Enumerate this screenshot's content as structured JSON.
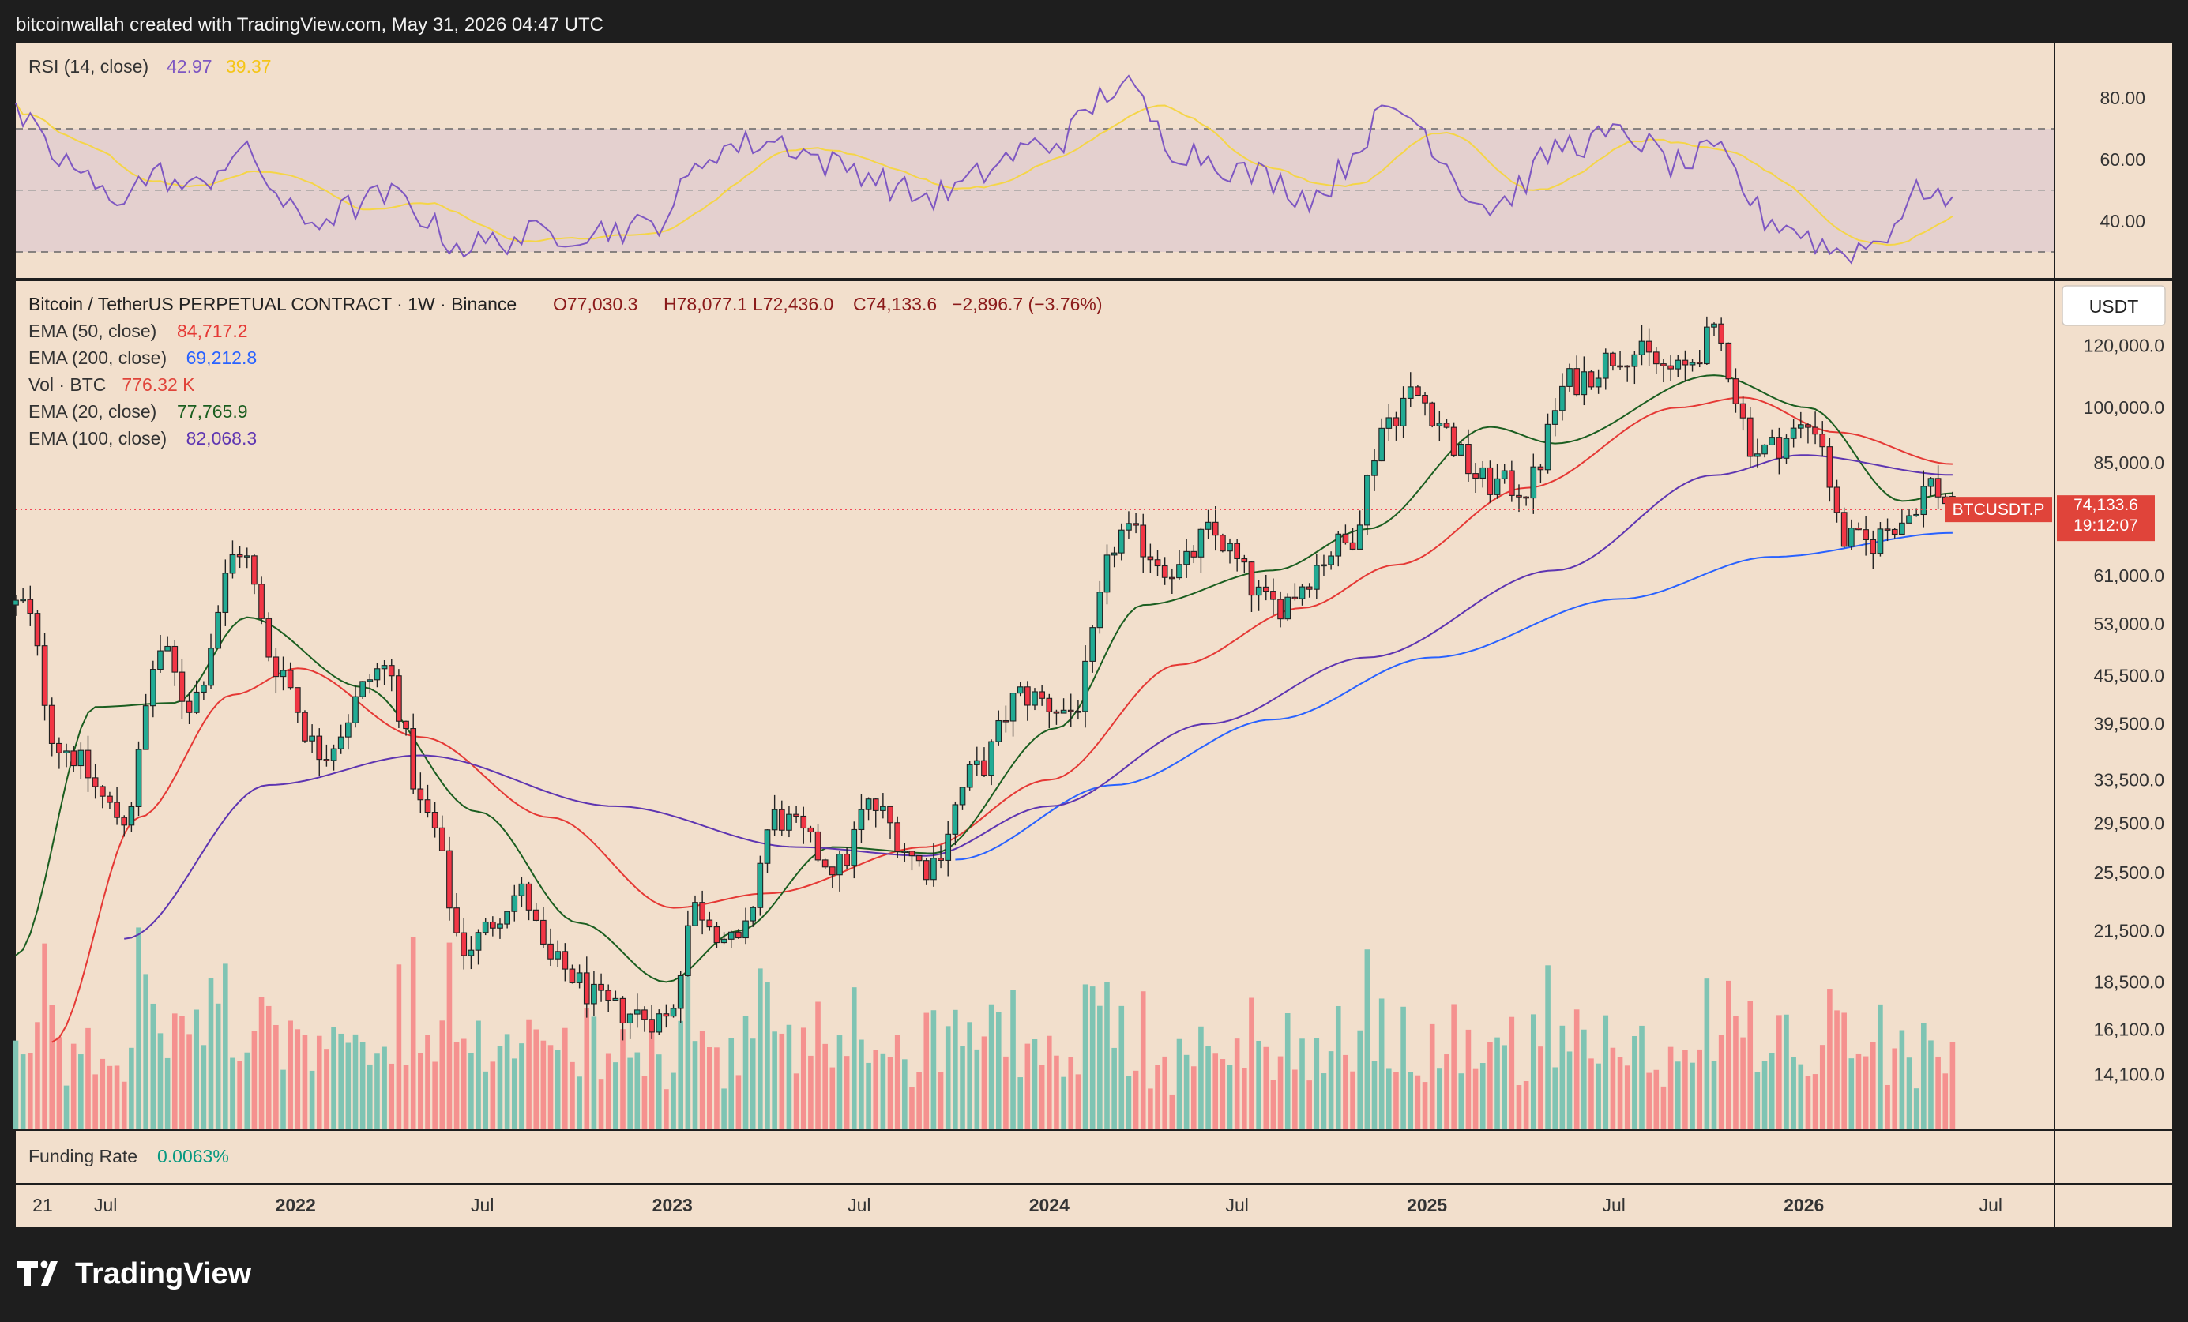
{
  "header": {
    "attribution": "bitcoinwallah created with TradingView.com, May 31, 2026 04:47 UTC"
  },
  "rsi_panel": {
    "title": "RSI (14, close)",
    "value": "42.97",
    "ma_value": "39.37",
    "ticks": [
      {
        "value": 80,
        "label": "80.00"
      },
      {
        "value": 60,
        "label": "60.00"
      },
      {
        "value": 40,
        "label": "40.00"
      }
    ],
    "upper_band": 70,
    "middle_band": 50,
    "lower_band": 30,
    "colors": {
      "rsi": "#7e57c2",
      "ma": "#f5d547",
      "band_fill": "#e4d0cf"
    }
  },
  "main_panel": {
    "symbol_title": "Bitcoin / TetherUS PERPETUAL CONTRACT · 1W · Binance",
    "ohlc": {
      "o": "O77,030.3",
      "h": "H78,077.1",
      "l": "L72,436.0",
      "c": "C74,133.6",
      "chg": "−2,896.7 (−3.76%)"
    },
    "legend": [
      {
        "name": "EMA (50, close)",
        "value": "84,717.2",
        "color": "#e53935"
      },
      {
        "name": "EMA (200, close)",
        "value": "69,212.8",
        "color": "#2962ff"
      },
      {
        "name": "Vol · BTC",
        "value": "776.32 K",
        "color": "#e0443a"
      },
      {
        "name": "EMA (20, close)",
        "value": "77,765.9",
        "color": "#1b5e20"
      },
      {
        "name": "EMA (100, close)",
        "value": "82,068.3",
        "color": "#5e35b1"
      }
    ],
    "currency_button": "USDT",
    "price_tag": {
      "symbol": "BTCUSDT.P",
      "price": "74,133.6",
      "countdown": "19:12:07"
    },
    "price_ticks": [
      {
        "value": 120000,
        "label": "120,000.0"
      },
      {
        "value": 100000,
        "label": "100,000.0"
      },
      {
        "value": 85000,
        "label": "85,000.0"
      },
      {
        "value": 61000,
        "label": "61,000.0"
      },
      {
        "value": 53000,
        "label": "53,000.0"
      },
      {
        "value": 45500,
        "label": "45,500.0"
      },
      {
        "value": 39500,
        "label": "39,500.0"
      },
      {
        "value": 33500,
        "label": "33,500.0"
      },
      {
        "value": 29500,
        "label": "29,500.0"
      },
      {
        "value": 25500,
        "label": "25,500.0"
      },
      {
        "value": 21500,
        "label": "21,500.0"
      },
      {
        "value": 18500,
        "label": "18,500.0"
      },
      {
        "value": 16100,
        "label": "16,100.0"
      },
      {
        "value": 14100,
        "label": "14,100.0"
      }
    ],
    "colors": {
      "up": "#22ab94",
      "down": "#f23645",
      "vol_up": "#7fc4b3",
      "vol_down": "#f5918f",
      "background": "#f2dfcc"
    }
  },
  "funding_panel": {
    "label": "Funding Rate",
    "value": "0.0063%"
  },
  "time_axis": {
    "labels": [
      {
        "date": "2021-05-01",
        "text": "21",
        "bold": false
      },
      {
        "date": "2021-07-01",
        "text": "Jul",
        "bold": false
      },
      {
        "date": "2022-01-01",
        "text": "2022",
        "bold": true
      },
      {
        "date": "2022-07-01",
        "text": "Jul",
        "bold": false
      },
      {
        "date": "2023-01-01",
        "text": "2023",
        "bold": true
      },
      {
        "date": "2023-07-01",
        "text": "Jul",
        "bold": false
      },
      {
        "date": "2024-01-01",
        "text": "2024",
        "bold": true
      },
      {
        "date": "2024-07-01",
        "text": "Jul",
        "bold": false
      },
      {
        "date": "2025-01-01",
        "text": "2025",
        "bold": true
      },
      {
        "date": "2025-07-01",
        "text": "Jul",
        "bold": false
      },
      {
        "date": "2026-01-01",
        "text": "2026",
        "bold": true
      },
      {
        "date": "2026-07-01",
        "text": "Jul",
        "bold": false
      }
    ]
  },
  "footer": {
    "brand": "TradingView"
  },
  "chart_data": {
    "type": "candlestick",
    "interval": "1W",
    "y_scale": "log",
    "ylim": [
      12000,
      145000
    ],
    "xlim": [
      "2021-04-05",
      "2026-08-31"
    ],
    "anchors": [
      {
        "date": "2021-04-12",
        "close": 56000
      },
      {
        "date": "2021-05-17",
        "close": 37000
      },
      {
        "date": "2021-07-19",
        "close": 30000
      },
      {
        "date": "2021-08-23",
        "close": 49000
      },
      {
        "date": "2021-09-20",
        "close": 42000
      },
      {
        "date": "2021-11-08",
        "close": 66000
      },
      {
        "date": "2021-12-13",
        "close": 47000
      },
      {
        "date": "2022-01-24",
        "close": 36500
      },
      {
        "date": "2022-03-28",
        "close": 46500
      },
      {
        "date": "2022-05-09",
        "close": 30000
      },
      {
        "date": "2022-06-13",
        "close": 20500
      },
      {
        "date": "2022-08-08",
        "close": 24000
      },
      {
        "date": "2022-09-05",
        "close": 19500
      },
      {
        "date": "2022-11-07",
        "close": 17000
      },
      {
        "date": "2022-12-26",
        "close": 16600
      },
      {
        "date": "2023-01-23",
        "close": 23000
      },
      {
        "date": "2023-03-06",
        "close": 20500
      },
      {
        "date": "2023-04-10",
        "close": 30000
      },
      {
        "date": "2023-06-12",
        "close": 26000
      },
      {
        "date": "2023-07-10",
        "close": 31000
      },
      {
        "date": "2023-09-04",
        "close": 26000
      },
      {
        "date": "2023-10-23",
        "close": 34500
      },
      {
        "date": "2023-12-04",
        "close": 43000
      },
      {
        "date": "2024-01-22",
        "close": 41000
      },
      {
        "date": "2024-03-11",
        "close": 69000
      },
      {
        "date": "2024-05-06",
        "close": 62000
      },
      {
        "date": "2024-06-03",
        "close": 69000
      },
      {
        "date": "2024-08-05",
        "close": 56000
      },
      {
        "date": "2024-10-14",
        "close": 67000
      },
      {
        "date": "2024-11-25",
        "close": 97000
      },
      {
        "date": "2024-12-16",
        "close": 104000
      },
      {
        "date": "2025-03-03",
        "close": 80000
      },
      {
        "date": "2025-04-07",
        "close": 79000
      },
      {
        "date": "2025-05-19",
        "close": 108000
      },
      {
        "date": "2025-07-14",
        "close": 118000
      },
      {
        "date": "2025-09-01",
        "close": 111000
      },
      {
        "date": "2025-10-06",
        "close": 123000
      },
      {
        "date": "2025-11-17",
        "close": 88000
      },
      {
        "date": "2026-01-12",
        "close": 95000
      },
      {
        "date": "2026-02-09",
        "close": 68000
      },
      {
        "date": "2026-03-02",
        "close": 67000
      },
      {
        "date": "2026-04-06",
        "close": 72000
      },
      {
        "date": "2026-05-04",
        "close": 80000
      },
      {
        "date": "2026-05-25",
        "close": 74133.6
      }
    ],
    "ema": [
      {
        "name": "EMA (50, close)",
        "start": "2021-05-10",
        "anchors": [
          [
            "2021-05-10",
            15500
          ],
          [
            "2021-08-02",
            30000
          ],
          [
            "2021-11-01",
            43000
          ],
          [
            "2022-01-03",
            46500
          ],
          [
            "2022-05-02",
            38000
          ],
          [
            "2022-09-05",
            30000
          ],
          [
            "2023-01-02",
            23000
          ],
          [
            "2023-04-03",
            24000
          ],
          [
            "2023-09-04",
            27500
          ],
          [
            "2024-01-01",
            33500
          ],
          [
            "2024-05-06",
            47000
          ],
          [
            "2024-09-02",
            55500
          ],
          [
            "2024-12-02",
            63000
          ],
          [
            "2025-04-07",
            79000
          ],
          [
            "2025-09-01",
            100000
          ],
          [
            "2025-11-03",
            103000
          ],
          [
            "2026-02-02",
            93000
          ],
          [
            "2026-05-25",
            84717.2
          ]
        ]
      },
      {
        "name": "EMA (200, close)",
        "start": "2023-10-02",
        "anchors": [
          [
            "2023-10-02",
            26500
          ],
          [
            "2024-03-04",
            33000
          ],
          [
            "2024-08-05",
            40000
          ],
          [
            "2025-01-06",
            48000
          ],
          [
            "2025-07-07",
            57000
          ],
          [
            "2025-12-01",
            64500
          ],
          [
            "2026-05-25",
            69212.8
          ]
        ]
      },
      {
        "name": "EMA (20, close)",
        "start": "2021-04-05",
        "anchors": [
          [
            "2021-04-05",
            20000
          ],
          [
            "2021-06-21",
            41500
          ],
          [
            "2021-09-06",
            42000
          ],
          [
            "2021-11-15",
            54000
          ],
          [
            "2022-03-07",
            44000
          ],
          [
            "2022-06-27",
            30500
          ],
          [
            "2022-10-03",
            22000
          ],
          [
            "2022-12-26",
            18500
          ],
          [
            "2023-03-06",
            21500
          ],
          [
            "2023-06-05",
            27500
          ],
          [
            "2023-09-11",
            27000
          ],
          [
            "2024-01-08",
            39000
          ],
          [
            "2024-04-01",
            56000
          ],
          [
            "2024-08-05",
            62000
          ],
          [
            "2024-11-04",
            70000
          ],
          [
            "2025-03-03",
            94500
          ],
          [
            "2025-05-05",
            90000
          ],
          [
            "2025-10-06",
            110000
          ],
          [
            "2026-01-05",
            100000
          ],
          [
            "2026-04-06",
            76000
          ],
          [
            "2026-05-25",
            77765.9
          ]
        ]
      },
      {
        "name": "EMA (100, close)",
        "start": "2021-07-19",
        "anchors": [
          [
            "2021-07-19",
            21000
          ],
          [
            "2021-12-06",
            33000
          ],
          [
            "2022-05-02",
            36000
          ],
          [
            "2022-11-07",
            31000
          ],
          [
            "2023-05-01",
            27500
          ],
          [
            "2023-09-04",
            26800
          ],
          [
            "2024-01-01",
            31000
          ],
          [
            "2024-06-03",
            39500
          ],
          [
            "2024-11-04",
            48000
          ],
          [
            "2025-05-05",
            62000
          ],
          [
            "2025-10-06",
            82000
          ],
          [
            "2025-12-29",
            87000
          ],
          [
            "2026-05-25",
            82068.3
          ]
        ]
      }
    ],
    "rsi_anchors": [
      [
        "2021-04-05",
        74
      ],
      [
        "2021-05-17",
        60
      ],
      [
        "2021-07-05",
        48
      ],
      [
        "2021-08-23",
        55
      ],
      [
        "2021-09-20",
        50
      ],
      [
        "2021-11-08",
        62
      ],
      [
        "2022-01-10",
        40
      ],
      [
        "2022-04-04",
        48
      ],
      [
        "2022-06-13",
        32
      ],
      [
        "2022-09-05",
        36
      ],
      [
        "2022-12-05",
        38
      ],
      [
        "2023-02-20",
        64
      ],
      [
        "2023-04-10",
        66
      ],
      [
        "2023-06-12",
        58
      ],
      [
        "2023-09-04",
        48
      ],
      [
        "2024-01-01",
        65
      ],
      [
        "2024-03-11",
        84
      ],
      [
        "2024-05-06",
        63
      ],
      [
        "2024-07-22",
        55
      ],
      [
        "2024-09-09",
        48
      ],
      [
        "2024-12-02",
        76
      ],
      [
        "2025-03-03",
        45
      ],
      [
        "2025-05-19",
        65
      ],
      [
        "2025-07-14",
        68
      ],
      [
        "2025-09-01",
        58
      ],
      [
        "2025-10-06",
        62
      ],
      [
        "2025-12-01",
        40
      ],
      [
        "2026-02-09",
        30
      ],
      [
        "2026-03-02",
        32
      ],
      [
        "2026-05-04",
        51
      ],
      [
        "2026-05-25",
        42.97
      ]
    ]
  }
}
